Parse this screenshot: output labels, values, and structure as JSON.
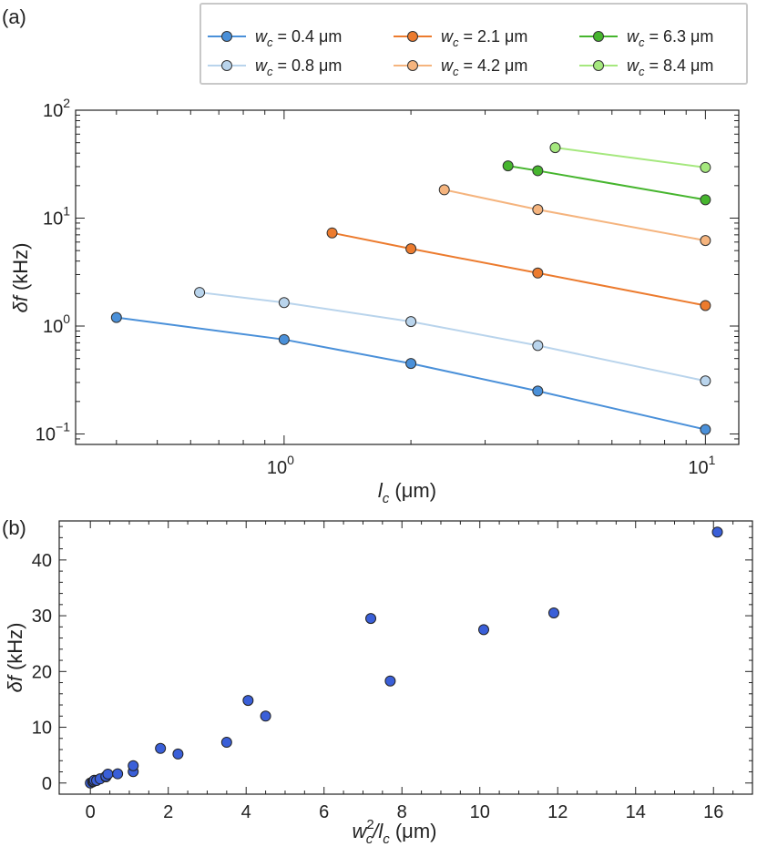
{
  "chart_data": [
    {
      "panel_label": "(a)",
      "type": "line",
      "scale": "log-log",
      "xlabel": {
        "main": "l",
        "sub": "c",
        "unit": "(μm)"
      },
      "ylabel": {
        "main": "δf",
        "unit": "(kHz)"
      },
      "xlim": [
        0.32,
        12
      ],
      "ylim": [
        0.08,
        100
      ],
      "xticks": [
        {
          "value": 1,
          "base": "10",
          "exp": "0"
        },
        {
          "value": 10,
          "base": "10",
          "exp": "1"
        }
      ],
      "yticks": [
        {
          "value": 0.1,
          "base": "10",
          "exp": "−1"
        },
        {
          "value": 1,
          "base": "10",
          "exp": "0"
        },
        {
          "value": 10,
          "base": "10",
          "exp": "1"
        },
        {
          "value": 100,
          "base": "10",
          "exp": "2"
        }
      ],
      "legend_position": "top-right",
      "series": [
        {
          "name": "w_c = 0.4 μm",
          "legend_prefix": "w",
          "legend_sub": "c",
          "legend_text": " = 0.4 μm",
          "color": "#4a90d9",
          "points": [
            [
              0.4,
              1.2
            ],
            [
              1,
              0.75
            ],
            [
              2,
              0.45
            ],
            [
              4,
              0.25
            ],
            [
              10,
              0.11
            ]
          ]
        },
        {
          "name": "w_c = 0.8 μm",
          "legend_prefix": "w",
          "legend_sub": "c",
          "legend_text": " = 0.8 μm",
          "color": "#b9d4ec",
          "points": [
            [
              0.63,
              2.05
            ],
            [
              1,
              1.65
            ],
            [
              2,
              1.1
            ],
            [
              4,
              0.66
            ],
            [
              10,
              0.31
            ]
          ]
        },
        {
          "name": "w_c = 2.1 μm",
          "legend_prefix": "w",
          "legend_sub": "c",
          "legend_text": " = 2.1 μm",
          "color": "#ec7b2e",
          "points": [
            [
              1.3,
              7.3
            ],
            [
              2,
              5.2
            ],
            [
              4,
              3.1
            ],
            [
              10,
              1.55
            ]
          ]
        },
        {
          "name": "w_c = 4.2 μm",
          "legend_prefix": "w",
          "legend_sub": "c",
          "legend_text": " = 4.2 μm",
          "color": "#f5b47e",
          "points": [
            [
              2.4,
              18.3
            ],
            [
              4,
              12
            ],
            [
              10,
              6.2
            ]
          ]
        },
        {
          "name": "w_c = 6.3 μm",
          "legend_prefix": "w",
          "legend_sub": "c",
          "legend_text": " = 6.3 μm",
          "color": "#46b52e",
          "points": [
            [
              3.4,
              30.5
            ],
            [
              4,
              27.5
            ],
            [
              10,
              14.8
            ]
          ]
        },
        {
          "name": "w_c = 8.4 μm",
          "legend_prefix": "w",
          "legend_sub": "c",
          "legend_text": " = 8.4 μm",
          "color": "#a5e87e",
          "points": [
            [
              4.4,
              45
            ],
            [
              10,
              29.5
            ]
          ]
        }
      ]
    },
    {
      "panel_label": "(b)",
      "type": "scatter",
      "xlabel": {
        "main": "w",
        "sup": "2",
        "sub": "c",
        "rest": "/l",
        "sub2": "c",
        "unit": "(μm)"
      },
      "ylabel": {
        "main": "δf",
        "unit": "(kHz)"
      },
      "xlim": [
        -0.8,
        17
      ],
      "ylim": [
        -2,
        47
      ],
      "xticks": [
        0,
        2,
        4,
        6,
        8,
        10,
        12,
        14,
        16
      ],
      "yticks": [
        0,
        10,
        20,
        30,
        40
      ],
      "color": "#3a5fd8",
      "points": [
        [
          0.0,
          0.0
        ],
        [
          0.06,
          0.2
        ],
        [
          0.08,
          0.3
        ],
        [
          0.1,
          0.5
        ],
        [
          0.16,
          0.45
        ],
        [
          0.25,
          0.75
        ],
        [
          0.4,
          1.1
        ],
        [
          0.4,
          1.2
        ],
        [
          0.45,
          1.6
        ],
        [
          0.7,
          1.65
        ],
        [
          1.1,
          2.05
        ],
        [
          1.1,
          3.1
        ],
        [
          1.8,
          6.2
        ],
        [
          2.25,
          5.2
        ],
        [
          3.5,
          7.3
        ],
        [
          4.05,
          14.8
        ],
        [
          4.5,
          12.0
        ],
        [
          7.2,
          29.5
        ],
        [
          7.7,
          18.3
        ],
        [
          10.1,
          27.5
        ],
        [
          11.9,
          30.5
        ],
        [
          16.1,
          45.0
        ]
      ]
    }
  ]
}
